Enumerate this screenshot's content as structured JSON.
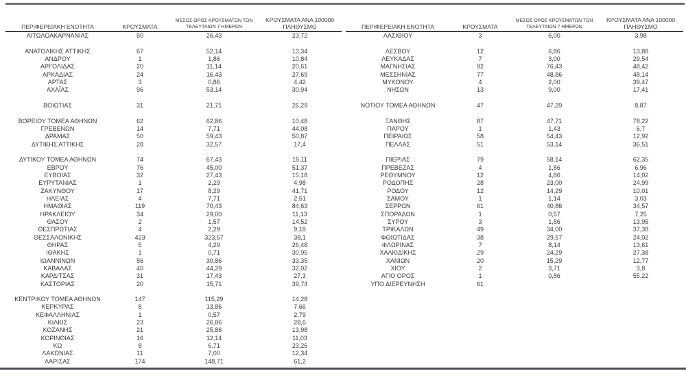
{
  "colors": {
    "text": "#3a3a3a",
    "top_rule": "#6f6f6f",
    "header_rule": "#3f3f3f",
    "bottom_rule": "#4b4f55"
  },
  "headers": {
    "region": "ΠΕΡΙΦΕΡΕΙΑΚΗ ΕΝΟΤΗΤΑ",
    "cases": "ΚΡΟΥΣΜΑΤΑ",
    "avg7_line1": "ΜΕΣΟΣ ΟΡΟΣ ΚΡΟΥΣΜΑΤΩΝ ΤΩΝ",
    "avg7_line2": "ΤΕΛΕΥΤΑΙΩΝ 7 ΗΜΕΡΩΝ",
    "per100k_line1": "ΚΡΟΥΣΜΑΤΑ ΑΝΑ 100000",
    "per100k_line2": "ΠΛΗΘΥΣΜΟ"
  },
  "left_table": {
    "rows": [
      [
        "ΑΙΤΩΛΟΑΚΑΡΝΑΝΙΑΣ",
        "50",
        "26,43",
        "23,72"
      ],
      null,
      [
        "ΑΝΑΤΟΛΙΚΗΣ ΑΤΤΙΚΗΣ",
        "67",
        "52,14",
        "13,34"
      ],
      [
        "ΑΝΔΡΟΥ",
        "1",
        "1,86",
        "10,84"
      ],
      [
        "ΑΡΓΟΛΙΔΑΣ",
        "20",
        "11,14",
        "20,61"
      ],
      [
        "ΑΡΚΑΔΙΑΣ",
        "24",
        "16,43",
        "27,69"
      ],
      [
        "ΑΡΤΑΣ",
        "3",
        "0,86",
        "4,42"
      ],
      [
        "ΑΧΑΪΑΣ",
        "96",
        "53,14",
        "30,94"
      ],
      null,
      [
        "ΒΟΙΩΤΙΑΣ",
        "31",
        "21,71",
        "26,29"
      ],
      null,
      [
        "ΒΟΡΕΙΟΥ ΤΟΜΕΑ ΑΘΗΝΩΝ",
        "62",
        "62,86",
        "10,48"
      ],
      [
        "ΓΡΕΒΕΝΩΝ",
        "14",
        "7,71",
        "44,08"
      ],
      [
        "ΔΡΑΜΑΣ",
        "50",
        "59,43",
        "50,87"
      ],
      [
        "ΔΥΤΙΚΗΣ ΑΤΤΙΚΗΣ",
        "28",
        "32,57",
        "17,4"
      ],
      null,
      [
        "ΔΥΤΙΚΟΥ ΤΟΜΕΑ ΑΘΗΝΩΝ",
        "74",
        "67,43",
        "15,11"
      ],
      [
        "ΕΒΡΟΥ",
        "76",
        "45,00",
        "51,37"
      ],
      [
        "ΕΥΒΟΙΑΣ",
        "32",
        "27,43",
        "15,18"
      ],
      [
        "ΕΥΡΥΤΑΝΙΑΣ",
        "1",
        "2,29",
        "4,98"
      ],
      [
        "ΖΑΚΥΝΘΟΥ",
        "17",
        "8,29",
        "41,71"
      ],
      [
        "ΗΛΕΙΑΣ",
        "4",
        "7,71",
        "2,51"
      ],
      [
        "ΗΜΑΘΙΑΣ",
        "119",
        "70,43",
        "84,63"
      ],
      [
        "ΗΡΑΚΛΕΙΟΥ",
        "34",
        "29,00",
        "11,13"
      ],
      [
        "ΘΑΣΟΥ",
        "2",
        "1,57",
        "14,52"
      ],
      [
        "ΘΕΣΠΡΩΤΙΑΣ",
        "4",
        "2,29",
        "9,18"
      ],
      [
        "ΘΕΣΣΑΛΟΝΙΚΗΣ",
        "423",
        "323,57",
        "38,1"
      ],
      [
        "ΘΗΡΑΣ",
        "5",
        "4,29",
        "26,48"
      ],
      [
        "ΙΘΑΚΗΣ",
        "1",
        "0,71",
        "30,95"
      ],
      [
        "ΙΩΑΝΝΙΝΩΝ",
        "56",
        "30,86",
        "33,35"
      ],
      [
        "ΚΑΒΑΛΑΣ",
        "40",
        "44,29",
        "32,02"
      ],
      [
        "ΚΑΡΔΙΤΣΑΣ",
        "31",
        "17,43",
        "27,3"
      ],
      [
        "ΚΑΣΤΟΡΙΑΣ",
        "20",
        "15,71",
        "39,74"
      ],
      null,
      [
        "ΚΕΝΤΡΙΚΟΥ ΤΟΜΕΑ ΑΘΗΝΩΝ",
        "147",
        "115,29",
        "14,28"
      ],
      [
        "ΚΕΡΚΥΡΑΣ",
        "8",
        "13,86",
        "7,66"
      ],
      [
        "ΚΕΦΑΛΛΗΝΙΑΣ",
        "1",
        "0,57",
        "2,79"
      ],
      [
        "ΚΙΛΚΙΣ",
        "23",
        "26,86",
        "28,6"
      ],
      [
        "ΚΟΖΑΝΗΣ",
        "21",
        "25,86",
        "13,98"
      ],
      [
        "ΚΟΡΙΝΘΙΑΣ",
        "16",
        "12,14",
        "11,03"
      ],
      [
        "ΚΩ",
        "8",
        "6,71",
        "23,26"
      ],
      [
        "ΛΑΚΩΝΙΑΣ",
        "11",
        "7,00",
        "12,34"
      ],
      [
        "ΛΑΡΙΣΑΣ",
        "174",
        "148,71",
        "61,2"
      ]
    ]
  },
  "right_table": {
    "rows": [
      [
        "ΛΑΣΙΘΙΟΥ",
        "3",
        "6,00",
        "3,98"
      ],
      null,
      [
        "ΛΕΣΒΟΥ",
        "12",
        "6,86",
        "13,88"
      ],
      [
        "ΛΕΥΚΑΔΑΣ",
        "7",
        "3,00",
        "29,54"
      ],
      [
        "ΜΑΓΝΗΣΙΑΣ",
        "92",
        "76,43",
        "48,42"
      ],
      [
        "ΜΕΣΣΗΝΙΑΣ",
        "77",
        "48,86",
        "48,14"
      ],
      [
        "ΜΥΚΟΝΟΥ",
        "4",
        "2,00",
        "39,47"
      ],
      [
        "ΝΗΣΩΝ",
        "13",
        "9,00",
        "17,41"
      ],
      null,
      [
        "ΝΟΤΙΟΥ ΤΟΜΕΑ ΑΘΗΝΩΝ",
        "47",
        "47,29",
        "8,87"
      ],
      null,
      [
        "ΞΑΝΘΗΣ",
        "87",
        "47,71",
        "78,22"
      ],
      [
        "ΠΑΡΟΥ",
        "1",
        "1,43",
        "6,7"
      ],
      [
        "ΠΕΙΡΑΙΩΣ",
        "58",
        "54,43",
        "12,92"
      ],
      [
        "ΠΕΛΛΑΣ",
        "51",
        "53,14",
        "36,51"
      ],
      null,
      [
        "ΠΙΕΡΙΑΣ",
        "79",
        "58,14",
        "62,35"
      ],
      [
        "ΠΡΕΒΕΖΑΣ",
        "4",
        "1,86",
        "6,96"
      ],
      [
        "ΡΕΘΥΜΝΟΥ",
        "12",
        "4,86",
        "14,02"
      ],
      [
        "ΡΟΔΟΠΗΣ",
        "28",
        "23,00",
        "24,99"
      ],
      [
        "ΡΟΔΟΥ",
        "12",
        "14,29",
        "10,01"
      ],
      [
        "ΣΑΜΟΥ",
        "1",
        "1,14",
        "3,03"
      ],
      [
        "ΣΕΡΡΩΝ",
        "61",
        "40,86",
        "34,57"
      ],
      [
        "ΣΠΟΡΑΔΩΝ",
        "1",
        "0,57",
        "7,25"
      ],
      [
        "ΣΥΡΟΥ",
        "3",
        "1,86",
        "13,95"
      ],
      [
        "ΤΡΙΚΑΛΩΝ",
        "49",
        "34,00",
        "37,38"
      ],
      [
        "ΦΘΙΩΤΙΔΑΣ",
        "38",
        "29,57",
        "24,02"
      ],
      [
        "ΦΛΩΡΙΝΑΣ",
        "7",
        "8,14",
        "13,61"
      ],
      [
        "ΧΑΛΚΙΔΙΚΗΣ",
        "29",
        "24,29",
        "27,38"
      ],
      [
        "ΧΑΝΙΩΝ",
        "20",
        "15,29",
        "12,77"
      ],
      [
        "ΧΙΟΥ",
        "2",
        "3,71",
        "3,8"
      ],
      [
        "ΑΓΙΟ ΟΡΟΣ",
        "1",
        "0,86",
        "55,22"
      ],
      [
        "ΥΠΟ ΔΙΕΡΕΥΝΗΣΗ",
        "61",
        "",
        ""
      ]
    ]
  }
}
